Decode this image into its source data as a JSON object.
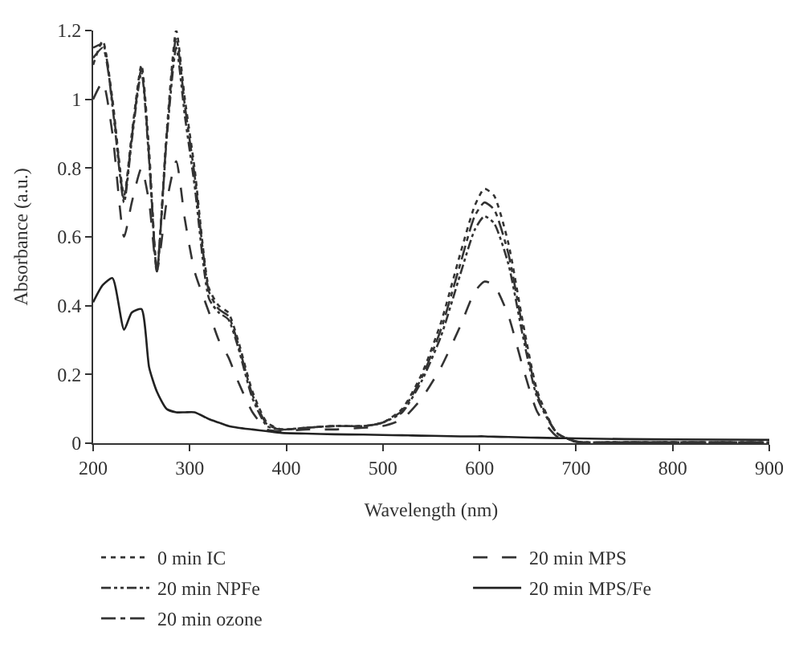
{
  "chart_data": {
    "type": "line",
    "xlabel": "Wavelength (nm)",
    "ylabel": "Absorbance (a.u.)",
    "x": [
      200,
      210,
      220,
      232,
      240,
      250,
      258,
      266,
      276,
      286,
      295,
      305,
      320,
      330,
      340,
      350,
      365,
      380,
      395,
      420,
      450,
      480,
      500,
      520,
      540,
      560,
      580,
      595,
      605,
      615,
      630,
      645,
      660,
      680,
      700,
      750,
      800,
      900
    ],
    "series": [
      {
        "name": "0 min IC",
        "color": "#333333",
        "line_style": "dotted",
        "values": [
          1.1,
          1.17,
          1.0,
          0.72,
          0.9,
          1.1,
          0.85,
          0.5,
          0.9,
          1.2,
          1.0,
          0.8,
          0.45,
          0.4,
          0.38,
          0.3,
          0.15,
          0.06,
          0.04,
          0.045,
          0.05,
          0.05,
          0.06,
          0.1,
          0.2,
          0.35,
          0.55,
          0.69,
          0.74,
          0.72,
          0.58,
          0.35,
          0.15,
          0.03,
          0.005,
          0.003,
          0.003,
          0.003
        ]
      },
      {
        "name": "20 min NPFe",
        "color": "#333333",
        "line_style": "dashdotdot",
        "values": [
          1.15,
          1.16,
          0.98,
          0.7,
          0.88,
          1.08,
          0.82,
          0.5,
          0.88,
          1.15,
          0.95,
          0.75,
          0.42,
          0.38,
          0.36,
          0.28,
          0.13,
          0.05,
          0.04,
          0.045,
          0.05,
          0.05,
          0.06,
          0.09,
          0.18,
          0.31,
          0.49,
          0.62,
          0.66,
          0.64,
          0.52,
          0.31,
          0.13,
          0.03,
          0.005,
          0.003,
          0.003,
          0.003
        ]
      },
      {
        "name": "20 min ozone",
        "color": "#333333",
        "line_style": "dashdot",
        "values": [
          1.12,
          1.15,
          0.99,
          0.71,
          0.89,
          1.09,
          0.83,
          0.5,
          0.89,
          1.18,
          0.98,
          0.78,
          0.44,
          0.39,
          0.37,
          0.29,
          0.14,
          0.055,
          0.04,
          0.045,
          0.05,
          0.05,
          0.06,
          0.095,
          0.19,
          0.33,
          0.52,
          0.66,
          0.7,
          0.68,
          0.55,
          0.33,
          0.14,
          0.03,
          0.005,
          0.003,
          0.003,
          0.003
        ]
      },
      {
        "name": "20 min MPS",
        "color": "#333333",
        "line_style": "dashed",
        "values": [
          1.0,
          1.05,
          0.9,
          0.6,
          0.7,
          0.8,
          0.7,
          0.5,
          0.7,
          0.82,
          0.65,
          0.5,
          0.38,
          0.3,
          0.25,
          0.18,
          0.09,
          0.04,
          0.035,
          0.04,
          0.04,
          0.045,
          0.05,
          0.07,
          0.13,
          0.22,
          0.34,
          0.44,
          0.47,
          0.46,
          0.37,
          0.22,
          0.09,
          0.02,
          0.004,
          0.003,
          0.003,
          0.003
        ]
      },
      {
        "name": "20 min MPS/Fe",
        "color": "#222222",
        "line_style": "solid",
        "values": [
          0.41,
          0.46,
          0.48,
          0.33,
          0.38,
          0.39,
          0.22,
          0.15,
          0.1,
          0.09,
          0.09,
          0.09,
          0.07,
          0.06,
          0.05,
          0.045,
          0.04,
          0.035,
          0.03,
          0.028,
          0.026,
          0.025,
          0.024,
          0.023,
          0.022,
          0.021,
          0.02,
          0.02,
          0.02,
          0.019,
          0.018,
          0.017,
          0.016,
          0.015,
          0.014,
          0.012,
          0.011,
          0.01
        ]
      }
    ],
    "xlim": [
      200,
      900
    ],
    "xticks": [
      200,
      300,
      400,
      500,
      600,
      700,
      800,
      900
    ],
    "ylim": [
      0,
      1.2
    ],
    "yticks": [
      0,
      0.2,
      0.4,
      0.6,
      0.8,
      1,
      1.2
    ],
    "legend": "bottom",
    "marker": "none"
  }
}
